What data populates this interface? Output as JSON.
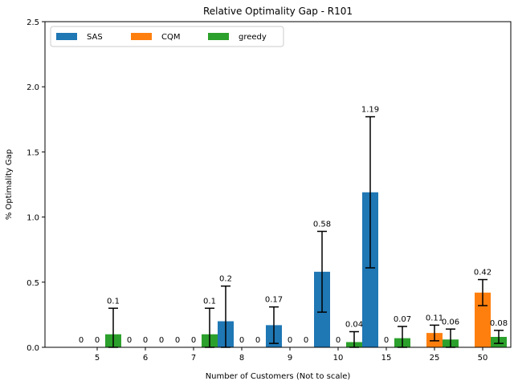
{
  "chart_data": {
    "type": "bar",
    "title": "Relative Optimality Gap - R101",
    "xlabel": "Number of Customers (Not to scale)",
    "ylabel": "% Optimality Gap",
    "ylim": [
      0,
      2.5
    ],
    "yticks": [
      "0.0",
      "0.5",
      "1.0",
      "1.5",
      "2.0",
      "2.5"
    ],
    "categories": [
      "5",
      "6",
      "7",
      "8",
      "9",
      "10",
      "15",
      "25",
      "50"
    ],
    "legend_position": "top-left",
    "series": [
      {
        "name": "SAS",
        "color": "#1f77b4",
        "values": [
          0,
          0,
          0,
          0.2,
          0.17,
          0.58,
          1.19,
          null,
          null
        ],
        "error": [
          0,
          0,
          0,
          0.27,
          0.14,
          0.31,
          0.58,
          null,
          null
        ],
        "labels": [
          "0",
          "0",
          "0",
          "0.2",
          "0.17",
          "0.58",
          "1.19",
          "",
          ""
        ]
      },
      {
        "name": "CQM",
        "color": "#ff7f0e",
        "values": [
          0,
          0,
          0,
          0,
          0,
          0,
          0,
          0.11,
          0.42
        ],
        "error": [
          0,
          0,
          0,
          0,
          0,
          0,
          0,
          0.06,
          0.1
        ],
        "labels": [
          "0",
          "0",
          "0",
          "0",
          "0",
          "0",
          "0",
          "0.11",
          "0.42"
        ]
      },
      {
        "name": "greedy",
        "color": "#2ca02c",
        "values": [
          0.1,
          0,
          0.1,
          0,
          0,
          0.04,
          0.07,
          0.06,
          0.08
        ],
        "error": [
          0.2,
          0,
          0.2,
          0,
          0,
          0.08,
          0.09,
          0.08,
          0.05
        ],
        "labels": [
          "0.1",
          "0",
          "0.1",
          "0",
          "0",
          "0.04",
          "0.07",
          "0.06",
          "0.08"
        ]
      }
    ]
  }
}
